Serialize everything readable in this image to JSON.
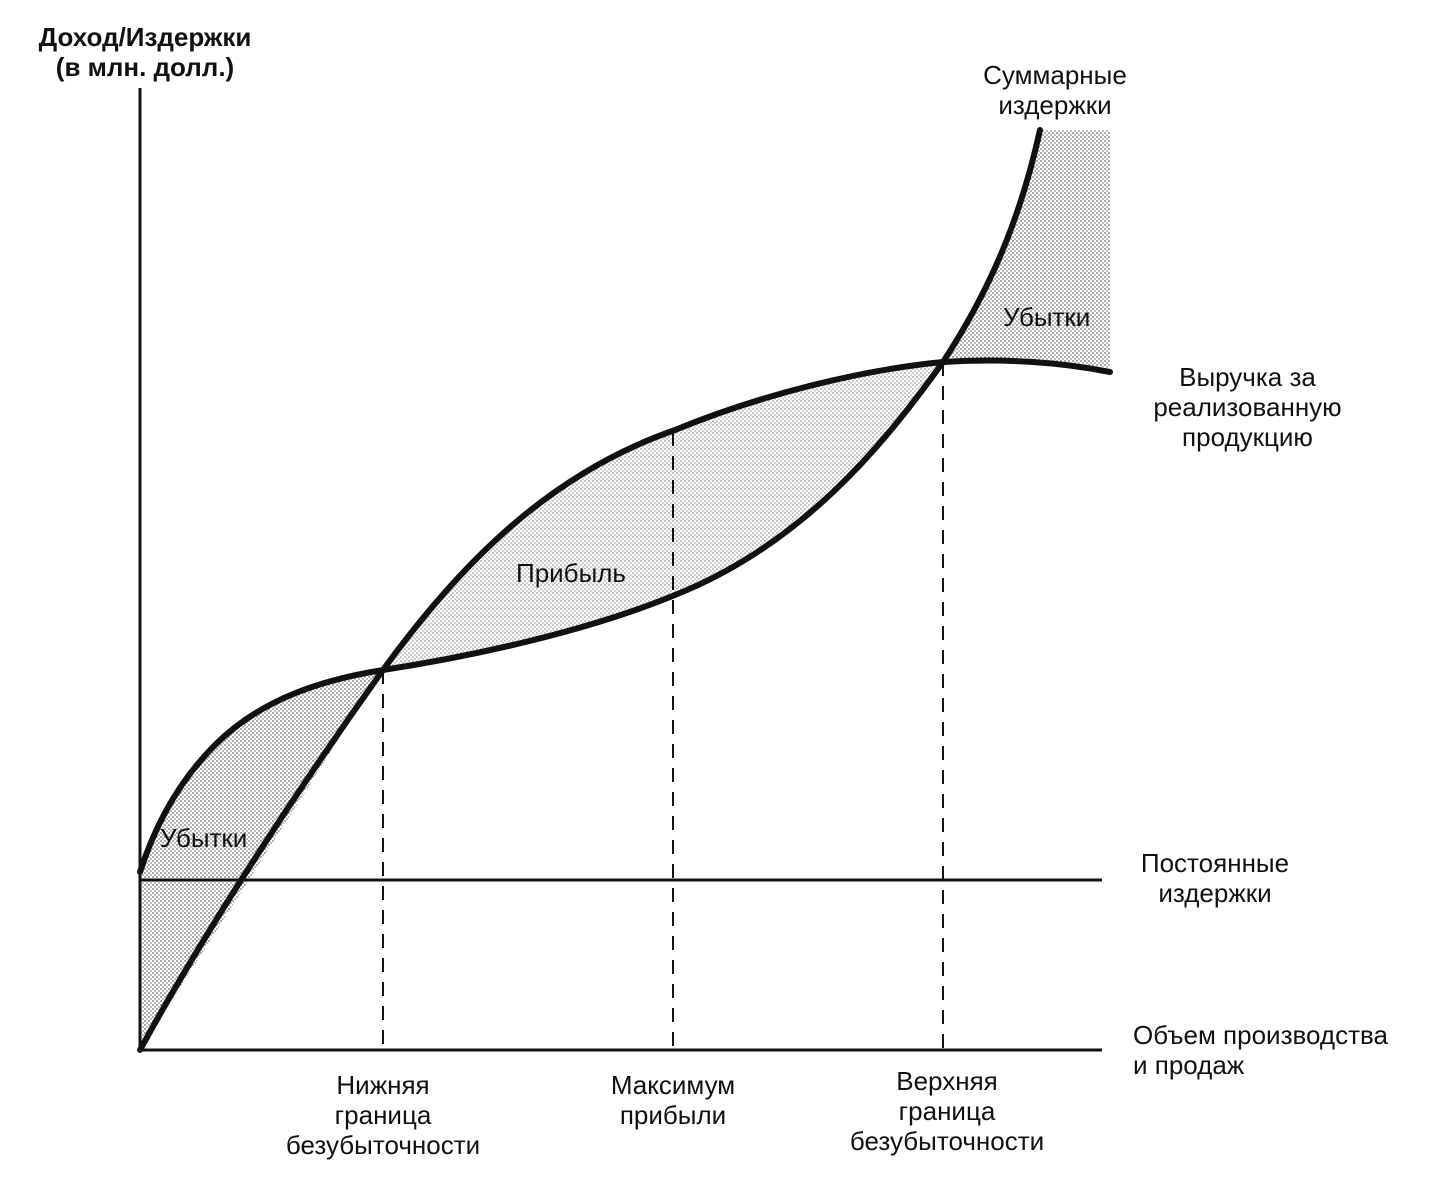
{
  "axis": {
    "y_label": [
      "Доход/Издержки",
      "(в млн. долл.)"
    ],
    "x_label": [
      "Объем производства",
      "и продаж"
    ]
  },
  "curves": {
    "total_costs": [
      "Суммарные",
      "издержки"
    ],
    "revenue": [
      "Выручка за",
      "реализованную",
      "продукцию"
    ],
    "fixed_costs": [
      "Постоянные",
      "издержки"
    ]
  },
  "regions": {
    "loss_left": "Убытки",
    "profit": "Прибыль",
    "loss_right": "Убытки"
  },
  "markers": {
    "lower_breakeven": [
      "Нижняя",
      "граница",
      "безубыточности"
    ],
    "max_profit": [
      "Максимум",
      "прибыли"
    ],
    "upper_breakeven": [
      "Верхняя",
      "граница",
      "безубыточности"
    ]
  },
  "colors": {
    "ink": "#111111",
    "shade": "#bdbdbd"
  }
}
